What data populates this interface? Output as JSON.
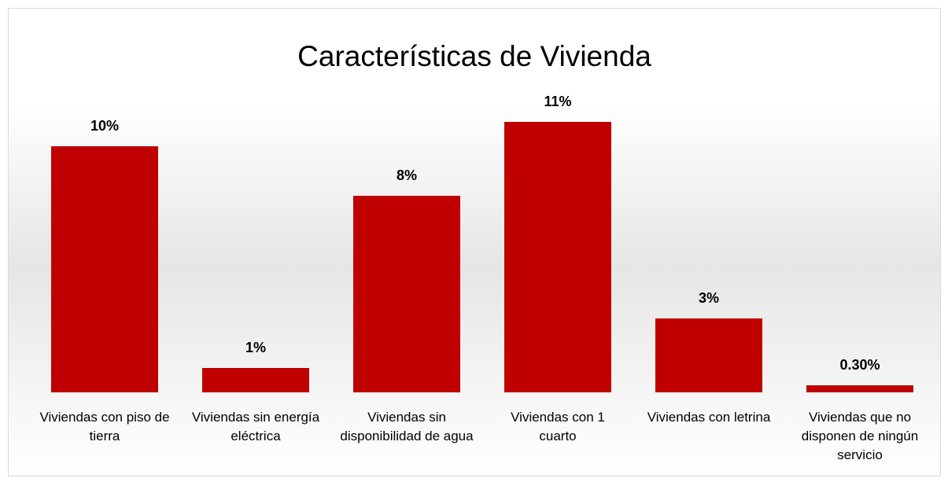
{
  "chart_data": {
    "type": "bar",
    "title": "Características de Vivienda",
    "categories": [
      "Viviendas con piso de tierra",
      "Viviendas sin energía eléctrica",
      "Viviendas sin disponibilidad de agua",
      "Viviendas con 1 cuarto",
      "Viviendas con letrina",
      "Viviendas que no disponen de ningún servicio"
    ],
    "values": [
      10,
      1,
      8,
      11,
      3,
      0.3
    ],
    "value_labels": [
      "10%",
      "1%",
      "8%",
      "11%",
      "3%",
      "0.30%"
    ],
    "color": "#c00000"
  }
}
